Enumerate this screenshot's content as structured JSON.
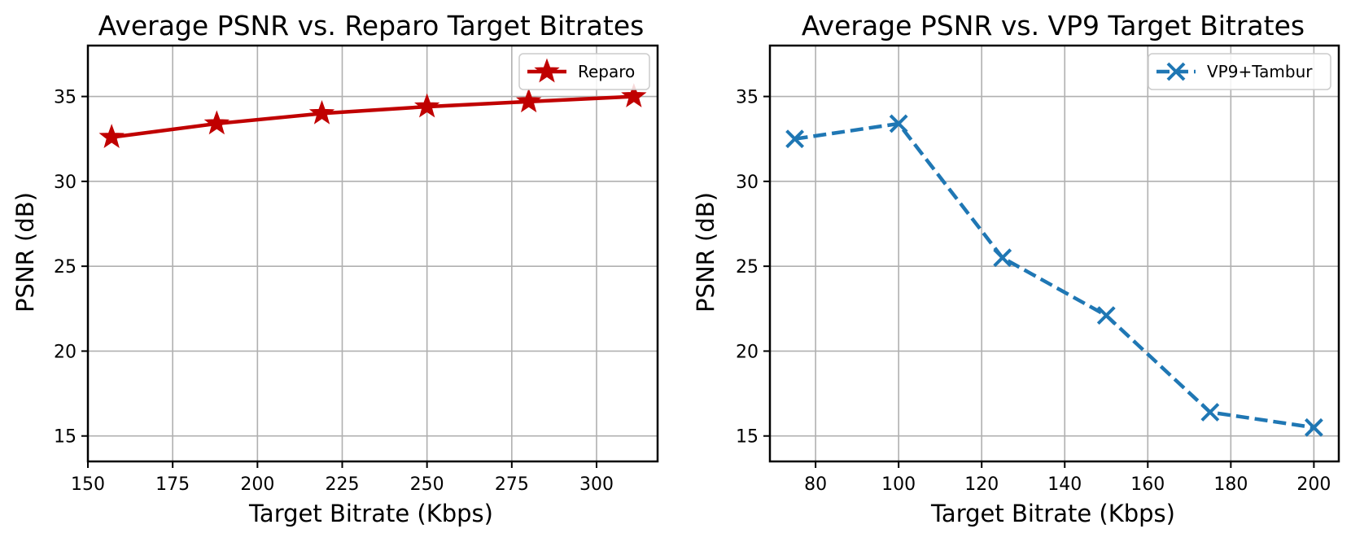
{
  "chart_data": [
    {
      "type": "line",
      "title": "Average PSNR vs. Reparo Target Bitrates",
      "xlabel": "Target Bitrate (Kbps)",
      "ylabel": "PSNR (dB)",
      "xlim": [
        150,
        318
      ],
      "ylim": [
        13.5,
        38
      ],
      "xticks": [
        150,
        175,
        200,
        225,
        250,
        275,
        300
      ],
      "yticks": [
        15,
        20,
        25,
        30,
        35
      ],
      "grid": true,
      "legend_position": "top-right",
      "series": [
        {
          "name": "Reparo",
          "color": "#c00000",
          "marker": "star",
          "linestyle": "solid",
          "x": [
            157,
            188,
            219,
            250,
            280,
            311
          ],
          "y": [
            32.6,
            33.4,
            34.0,
            34.4,
            34.7,
            35.0
          ]
        }
      ]
    },
    {
      "type": "line",
      "title": "Average PSNR vs. VP9 Target Bitrates",
      "xlabel": "Target Bitrate (Kbps)",
      "ylabel": "PSNR (dB)",
      "xlim": [
        69,
        206
      ],
      "ylim": [
        13.5,
        38
      ],
      "xticks": [
        80,
        100,
        120,
        140,
        160,
        180,
        200
      ],
      "yticks": [
        15,
        20,
        25,
        30,
        35
      ],
      "grid": true,
      "legend_position": "top-right",
      "series": [
        {
          "name": "VP9+Tambur",
          "color": "#1f77b4",
          "marker": "x",
          "linestyle": "dashed",
          "x": [
            75,
            100,
            125,
            150,
            175,
            200
          ],
          "y": [
            32.5,
            33.4,
            25.5,
            22.1,
            16.4,
            15.5
          ]
        }
      ]
    }
  ]
}
